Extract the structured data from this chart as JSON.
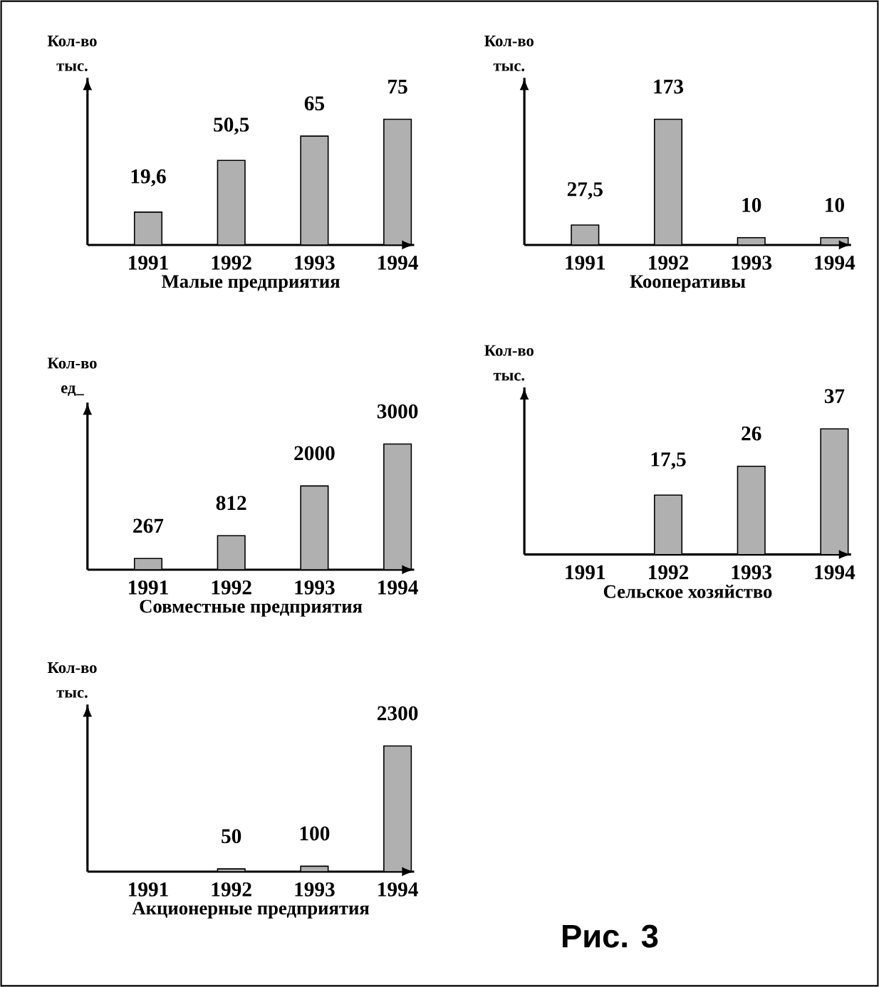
{
  "chart_data": [
    {
      "type": "bar",
      "xlabel": "Малые предприятия",
      "ylabel": "Кол-во тыс.",
      "categories": [
        "1991",
        "1992",
        "1993",
        "1994"
      ],
      "values": [
        19.6,
        50.5,
        65,
        75
      ],
      "value_labels": [
        "19,6",
        "50,5",
        "65",
        "75"
      ],
      "color": "#b0b0b0",
      "tick_labels": "x"
    },
    {
      "type": "bar",
      "xlabel": "Кооперативы",
      "ylabel": "Кол-во тыс.",
      "categories": [
        "1991",
        "1992",
        "1993",
        "1994"
      ],
      "values": [
        27.5,
        173,
        10,
        10
      ],
      "value_labels": [
        "27,5",
        "173",
        "10",
        "10"
      ],
      "color": "#b0b0b0",
      "tick_labels": "x"
    },
    {
      "type": "bar",
      "xlabel": "Совместные предприятия",
      "ylabel": "Кол-во ед_",
      "categories": [
        "1991",
        "1992",
        "1993",
        "1994"
      ],
      "values": [
        267,
        812,
        2000,
        3000
      ],
      "value_labels": [
        "267",
        "812",
        "2000",
        "3000"
      ],
      "color": "#b0b0b0",
      "tick_labels": "x"
    },
    {
      "type": "bar",
      "xlabel": "Сельское хозяйство",
      "ylabel": "Кол-во тыс.",
      "categories": [
        "1991",
        "1992",
        "1993",
        "1994"
      ],
      "values": [
        null,
        17.5,
        26,
        37
      ],
      "value_labels": [
        null,
        "17,5",
        "26",
        "37"
      ],
      "color": "#b0b0b0",
      "tick_labels": "x"
    },
    {
      "type": "bar",
      "xlabel": "Акционерные предприятия",
      "ylabel": "Кол-во тыс.",
      "categories": [
        "1991",
        "1992",
        "1993",
        "1994"
      ],
      "values": [
        null,
        50,
        100,
        2300
      ],
      "value_labels": [
        null,
        "50",
        "100",
        "2300"
      ],
      "color": "#b0b0b0",
      "tick_labels": "x",
      "annotations": [
        "Рис. 3"
      ]
    }
  ]
}
